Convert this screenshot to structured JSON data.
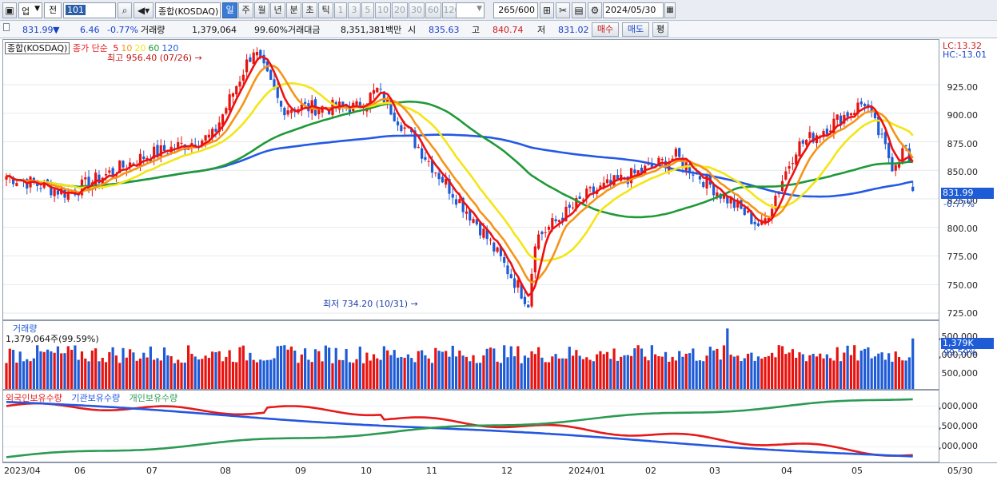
{
  "toolbar": {
    "market_select": "업",
    "prev_label": "전",
    "code_value": "101",
    "index_name": "종합(KOSDAQ)",
    "periods": [
      "일",
      "주",
      "월",
      "년",
      "분",
      "초",
      "틱"
    ],
    "active_period": "일",
    "intervals": [
      "1",
      "3",
      "5",
      "10",
      "20",
      "30",
      "60",
      "120"
    ],
    "count": "265/600",
    "date": "2024/05/30"
  },
  "quote": {
    "price": "831.99",
    "change": "6.46",
    "change_pct": "-0.77%",
    "volume_label": "거래량",
    "volume": "1,379,064",
    "volume_ratio": "99.60%",
    "amount_label": "거래대금",
    "amount": "8,351,381백만",
    "open_label": "시",
    "open": "835.63",
    "high_label": "고",
    "high": "840.74",
    "low_label": "저",
    "low": "831.02",
    "buy_label": "매수",
    "sell_label": "매도",
    "eval_label": "평"
  },
  "colors": {
    "up": "#e8120f",
    "down": "#1e5bd6",
    "ma5": "#ee1111",
    "ma10": "#f59418",
    "ma20": "#f3e615",
    "ma60": "#1f9a37",
    "ma120": "#2458e6",
    "holdings_foreign": "#e51b1b",
    "holdings_institution": "#2456e0",
    "holdings_individual": "#2c9a55"
  },
  "price_pane": {
    "legend_title": "종합(KOSDAQ)",
    "legend_ma_label": "종가 단순",
    "legend_ma": [
      "5",
      "10",
      "20",
      "60",
      "120"
    ],
    "high_note": "최고 956.40 (07/26)",
    "low_note": "최저 734.20 (10/31)",
    "lc_label": "LC:13.32",
    "hc_label": "HC:-13.01",
    "y_ticks": [
      "925.00",
      "900.00",
      "875.00",
      "850.00",
      "825.00",
      "800.00",
      "775.00",
      "750.00",
      "725.00"
    ],
    "last_price_tag": "831.99",
    "last_pct_tag": "-0.77%"
  },
  "volume_pane": {
    "title": "거래량",
    "value_text": "1,379,064주(99.59%)",
    "y_ticks": [
      "1,500,000",
      "1,000,000",
      "500,000"
    ],
    "tag_value": "1,379K",
    "tag_pct": "99.59%"
  },
  "holdings_pane": {
    "legend": [
      "외국인보유수량",
      "기관보유수량",
      "개인보유수량"
    ],
    "y_ticks": [
      "3,000,000",
      "2,500,000",
      "2,000,000"
    ]
  },
  "x_axis": {
    "labels": [
      "2023/04",
      "06",
      "07",
      "08",
      "09",
      "10",
      "11",
      "12",
      "2024/01",
      "02",
      "03",
      "04",
      "05"
    ],
    "end_label": "05/30"
  },
  "chart_data": [
    {
      "type": "candlestick",
      "title": "종합(KOSDAQ)",
      "period": "daily",
      "x_range": [
        "2023/04",
        "2024/05/30"
      ],
      "ylim": [
        725,
        960
      ],
      "anchors": [
        {
          "x": "2023/04",
          "value": 845
        },
        {
          "x": "05",
          "value": 830
        },
        {
          "x": "06",
          "value": 862
        },
        {
          "x": "07",
          "value": 880
        },
        {
          "x": "07/26",
          "value": 956.4
        },
        {
          "x": "08",
          "value": 905
        },
        {
          "x": "09",
          "value": 905
        },
        {
          "x": "09 mid",
          "value": 920
        },
        {
          "x": "10",
          "value": 850
        },
        {
          "x": "10 mid",
          "value": 800
        },
        {
          "x": "10/31",
          "value": 734.2
        },
        {
          "x": "11",
          "value": 790
        },
        {
          "x": "12",
          "value": 830
        },
        {
          "x": "2024/01",
          "value": 862
        },
        {
          "x": "02",
          "value": 800
        },
        {
          "x": "03",
          "value": 870
        },
        {
          "x": "03 end",
          "value": 910
        },
        {
          "x": "04",
          "value": 855
        },
        {
          "x": "05",
          "value": 870
        },
        {
          "x": "05/30",
          "value": 831.99
        }
      ],
      "moving_averages": [
        "5",
        "10",
        "20",
        "60",
        "120"
      ],
      "last": {
        "open": 835.63,
        "high": 840.74,
        "low": 831.02,
        "close": 831.99
      }
    },
    {
      "type": "bar",
      "title": "거래량",
      "ylim": [
        0,
        1700000
      ],
      "last_value": 1379064
    },
    {
      "type": "line",
      "series": [
        {
          "name": "외국인보유수량",
          "start": 3000000,
          "end": 1800000
        },
        {
          "name": "기관보유수량",
          "start": 3100000,
          "end": 1750000
        },
        {
          "name": "개인보유수량",
          "start": 1750000,
          "end": 3200000
        }
      ],
      "ylim": [
        1700000,
        3300000
      ]
    }
  ]
}
